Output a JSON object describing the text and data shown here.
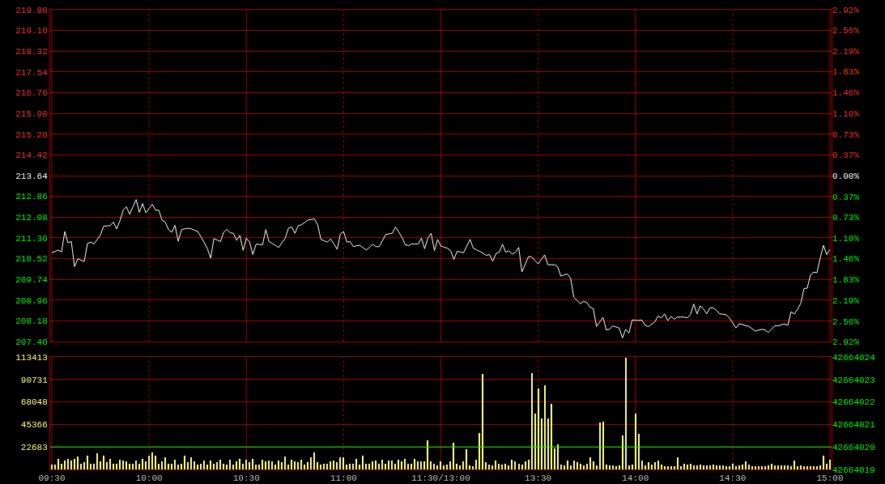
{
  "chart_data": [
    {
      "type": "line",
      "tick_labels": "y",
      "grid": true,
      "categories": [
        null,
        null,
        null,
        null,
        null,
        null,
        null,
        null,
        null,
        null,
        null,
        null,
        null,
        null,
        null,
        null,
        null,
        null,
        null,
        null,
        null,
        null,
        null,
        null,
        null,
        null,
        null,
        null,
        null,
        null,
        null,
        null,
        null,
        null,
        null,
        null,
        null,
        null,
        null,
        null,
        null,
        null,
        null,
        null,
        null,
        null,
        null,
        null,
        null,
        null,
        null,
        null,
        null,
        null,
        null,
        null,
        null,
        null,
        null,
        null,
        null,
        null,
        null,
        null,
        null,
        null,
        null,
        null,
        null,
        null,
        null,
        null,
        null,
        null,
        null,
        null,
        null,
        null,
        null,
        null,
        null,
        null,
        null,
        null,
        null,
        null,
        null,
        null,
        null,
        null,
        null,
        null,
        null,
        null,
        null,
        null,
        null,
        null,
        null,
        null,
        null,
        null,
        null,
        null,
        null,
        null,
        null,
        null,
        null,
        null,
        null,
        null,
        null,
        null,
        null,
        null,
        null,
        null,
        null,
        null,
        null,
        null,
        null,
        null,
        null,
        null,
        null,
        null,
        null,
        null,
        null,
        null,
        null,
        null,
        null,
        null,
        null,
        null,
        null,
        null,
        null,
        null,
        null,
        null,
        null,
        null,
        null,
        null,
        null,
        null,
        null,
        null,
        null,
        null,
        null,
        null,
        null,
        null,
        null,
        null,
        null,
        null,
        null,
        null,
        null,
        null,
        null,
        null,
        null,
        null,
        null,
        null,
        null,
        null,
        null,
        null,
        null,
        null,
        null,
        null,
        null,
        null,
        null,
        null,
        null,
        null,
        null,
        null,
        null,
        null,
        null,
        null,
        null,
        null,
        null,
        null,
        null,
        null,
        null,
        null,
        null,
        null,
        null,
        null,
        null,
        null,
        null,
        null,
        null,
        null,
        null,
        null,
        null,
        null,
        null,
        null,
        null,
        null,
        null,
        null,
        null,
        null,
        null,
        null,
        null,
        null,
        null,
        null,
        null,
        null,
        null,
        null,
        null,
        null,
        null,
        null,
        null,
        null,
        null,
        null,
        null
      ],
      "ylim": [
        207.4,
        219.88
      ],
      "yticks": [
        {
          "value": 207.4,
          "label": "207.40"
        },
        {
          "value": 208.18,
          "label": "208.18"
        },
        {
          "value": 208.96,
          "label": "208.96"
        },
        {
          "value": 209.74,
          "label": "209.74"
        },
        {
          "value": 210.52,
          "label": "210.52"
        },
        {
          "value": 211.3,
          "label": "211.30"
        },
        {
          "value": 212.08,
          "label": "212.08"
        },
        {
          "value": 212.86,
          "label": "212.86"
        },
        {
          "value": 213.64,
          "label": "213.64"
        },
        {
          "value": 214.42,
          "label": "214.42"
        },
        {
          "value": 215.2,
          "label": "215.20"
        },
        {
          "value": 215.98,
          "label": "215.98"
        },
        {
          "value": 216.76,
          "label": "216.76"
        },
        {
          "value": 217.54,
          "label": "217.54"
        },
        {
          "value": 218.32,
          "label": "218.32"
        },
        {
          "value": 219.1,
          "label": "219.10"
        },
        {
          "value": 219.88,
          "label": "219.88"
        }
      ],
      "y2lim": [
        -2.92,
        2.92
      ],
      "y2ticks": [
        {
          "value": -2.92,
          "label": "2.92%"
        },
        {
          "value": -2.56,
          "label": "2.56%"
        },
        {
          "value": -2.19,
          "label": "2.19%"
        },
        {
          "value": -1.83,
          "label": "1.83%"
        },
        {
          "value": -1.46,
          "label": "1.46%"
        },
        {
          "value": -1.1,
          "label": "1.10%"
        },
        {
          "value": -0.73,
          "label": "0.73%"
        },
        {
          "value": -0.37,
          "label": "0.37%"
        },
        {
          "value": 0,
          "label": "0.00%"
        },
        {
          "value": 0.37,
          "label": "0.37%"
        },
        {
          "value": 0.73,
          "label": "0.73%"
        },
        {
          "value": 1.1,
          "label": "1.10%"
        },
        {
          "value": 1.46,
          "label": "1.46%"
        },
        {
          "value": 1.83,
          "label": "1.83%"
        },
        {
          "value": 2.19,
          "label": "2.19%"
        },
        {
          "value": 2.56,
          "label": "2.56%"
        },
        {
          "value": 2.92,
          "label": "2.92%"
        }
      ],
      "series": [
        {
          "color": "#ffffff",
          "values": [
            210.74,
            210.79,
            210.84,
            210.77,
            211.54,
            211.11,
            211.17,
            210.22,
            210.51,
            210.46,
            210.41,
            211.09,
            211.14,
            211.07,
            211.24,
            211.41,
            211.74,
            211.75,
            211.76,
            211.89,
            211.64,
            211.94,
            212.34,
            212.47,
            212.19,
            212.46,
            212.74,
            212.26,
            212.59,
            212.24,
            212.41,
            212.56,
            212.34,
            212.34,
            211.97,
            211.89,
            211.61,
            211.51,
            211.77,
            211.17,
            211.61,
            211.64,
            211.66,
            211.64,
            211.59,
            211.54,
            211.34,
            211.12,
            210.89,
            210.54,
            211.27,
            211.22,
            211.16,
            211.51,
            211.62,
            211.49,
            211.47,
            211.21,
            211.39,
            210.83,
            211.29,
            211.14,
            210.67,
            211.06,
            211.05,
            211.04,
            211.61,
            211.16,
            211.09,
            211.01,
            210.94,
            211.12,
            211.29,
            211.67,
            211.71,
            211.47,
            211.76,
            211.79,
            211.88,
            211.97,
            211.99,
            212.01,
            211.79,
            211.24,
            211.19,
            211.14,
            211.26,
            211.07,
            210.87,
            211.44,
            211.54,
            211.14,
            211.16,
            210.97,
            211.0,
            211.02,
            210.93,
            210.84,
            210.95,
            211.06,
            210.97,
            210.97,
            211.2,
            211.43,
            211.45,
            211.47,
            211.71,
            211.52,
            211.32,
            211.04,
            211.01,
            211.07,
            211.07,
            211.07,
            211.29,
            210.89,
            211.29,
            211.47,
            210.82,
            211.24,
            210.99,
            210.95,
            210.91,
            210.82,
            210.49,
            210.79,
            210.77,
            210.74,
            210.99,
            211.24,
            210.91,
            210.85,
            210.79,
            210.72,
            210.64,
            210.67,
            210.42,
            210.71,
            210.76,
            211.06,
            210.76,
            210.81,
            210.69,
            210.76,
            210.94,
            210.02,
            210.3,
            210.59,
            210.59,
            210.45,
            210.32,
            210.49,
            210.66,
            210.29,
            210.29,
            210.29,
            210.22,
            209.86,
            209.91,
            209.94,
            209.79,
            209.07,
            208.95,
            208.82,
            208.91,
            208.87,
            208.69,
            208.64,
            207.97,
            208.14,
            208.31,
            207.84,
            207.86,
            207.99,
            207.95,
            207.91,
            207.54,
            207.86,
            207.72,
            208.21,
            208.2,
            208.19,
            208.21,
            208.01,
            207.96,
            208.05,
            208.14,
            208.36,
            208.29,
            208.44,
            208.19,
            208.34,
            208.24,
            208.32,
            208.32,
            208.32,
            208.29,
            208.42,
            208.81,
            208.44,
            208.74,
            208.62,
            208.44,
            208.67,
            208.67,
            208.57,
            208.44,
            208.43,
            208.41,
            208.29,
            208.1,
            207.91,
            208.07,
            208.04,
            208.0,
            207.97,
            207.88,
            207.79,
            207.83,
            207.86,
            207.84,
            207.74,
            207.87,
            207.99,
            207.99,
            208.03,
            208.06,
            208.01,
            208.52,
            208.44,
            208.61,
            208.84,
            209.39,
            209.41,
            209.91,
            210.01,
            209.99,
            210.54,
            211.02,
            210.67,
            210.86
          ]
        }
      ]
    },
    {
      "type": "bar",
      "grid": true,
      "color": "#ffff80",
      "categories": [
        "09:30",
        null,
        null,
        null,
        null,
        null,
        null,
        null,
        null,
        null,
        null,
        null,
        null,
        null,
        null,
        null,
        null,
        null,
        null,
        null,
        null,
        null,
        null,
        null,
        null,
        null,
        null,
        null,
        null,
        null,
        "10:00",
        null,
        null,
        null,
        null,
        null,
        null,
        null,
        null,
        null,
        null,
        null,
        null,
        null,
        null,
        null,
        null,
        null,
        null,
        null,
        null,
        null,
        null,
        null,
        null,
        null,
        null,
        null,
        null,
        null,
        "10:30",
        null,
        null,
        null,
        null,
        null,
        null,
        null,
        null,
        null,
        null,
        null,
        null,
        null,
        null,
        null,
        null,
        null,
        null,
        null,
        null,
        null,
        null,
        null,
        null,
        null,
        null,
        null,
        null,
        null,
        "11:00",
        null,
        null,
        null,
        null,
        null,
        null,
        null,
        null,
        null,
        null,
        null,
        null,
        null,
        null,
        null,
        null,
        null,
        null,
        null,
        null,
        null,
        null,
        null,
        null,
        null,
        null,
        null,
        null,
        null,
        "11:30/13:00",
        null,
        null,
        null,
        null,
        null,
        null,
        null,
        null,
        null,
        null,
        null,
        null,
        null,
        null,
        null,
        null,
        null,
        null,
        null,
        null,
        null,
        null,
        null,
        null,
        null,
        null,
        null,
        null,
        null,
        "13:30",
        null,
        null,
        null,
        null,
        null,
        null,
        null,
        null,
        null,
        null,
        null,
        null,
        null,
        null,
        null,
        null,
        null,
        null,
        null,
        null,
        null,
        null,
        null,
        null,
        null,
        null,
        null,
        null,
        null,
        "14:00",
        null,
        null,
        null,
        null,
        null,
        null,
        null,
        null,
        null,
        null,
        null,
        null,
        null,
        null,
        null,
        null,
        null,
        null,
        null,
        null,
        null,
        null,
        null,
        null,
        null,
        null,
        null,
        null,
        null,
        "14:30",
        null,
        null,
        null,
        null,
        null,
        null,
        null,
        null,
        null,
        null,
        null,
        null,
        null,
        null,
        null,
        null,
        null,
        null,
        null,
        null,
        null,
        null,
        null,
        null,
        null,
        null,
        null,
        null,
        null,
        "15:00"
      ],
      "ylim": [
        0,
        113413
      ],
      "yticks": [
        {
          "value": 0,
          "label": null
        },
        22683,
        45366,
        68048,
        90731,
        113413
      ],
      "y2lim": [
        42664019,
        42664024
      ],
      "y2ticks": [
        42664019,
        42664020,
        42664021,
        42664022,
        42664023,
        42664024
      ],
      "ref_lines": [
        {
          "axis": "y",
          "value": 22683,
          "color": "#00ff00"
        }
      ],
      "values": [
        5000,
        5000,
        11000,
        6000,
        9000,
        11000,
        9000,
        11000,
        13000,
        6000,
        7000,
        14000,
        6000,
        6000,
        16000,
        8000,
        14000,
        7000,
        11000,
        6000,
        6000,
        10000,
        9000,
        8000,
        6000,
        6000,
        9000,
        6000,
        11000,
        8000,
        14000,
        17000,
        14000,
        6000,
        8000,
        12000,
        6000,
        6000,
        10000,
        5000,
        6000,
        14000,
        7000,
        12000,
        8000,
        5000,
        6000,
        9000,
        5000,
        9000,
        6000,
        7000,
        10000,
        6000,
        5000,
        10000,
        5000,
        8000,
        11000,
        6000,
        10000,
        7000,
        11000,
        5000,
        5000,
        10000,
        8000,
        9000,
        8000,
        5000,
        9000,
        7000,
        13000,
        5000,
        10000,
        8000,
        7000,
        10000,
        5000,
        7000,
        12000,
        17000,
        7000,
        5000,
        6000,
        6000,
        8000,
        9000,
        7000,
        12000,
        12000,
        5000,
        6000,
        6000,
        11000,
        5000,
        14000,
        6000,
        6000,
        8000,
        9000,
        6000,
        10000,
        6000,
        9000,
        9000,
        6000,
        10000,
        8000,
        11000,
        6000,
        6000,
        11000,
        8000,
        8000,
        8000,
        29000,
        8000,
        6000,
        4000,
        8000,
        4000,
        5000,
        8000,
        27000,
        6000,
        4000,
        8000,
        20000,
        4000,
        3000,
        10000,
        37000,
        96000,
        7000,
        5000,
        4000,
        9000,
        6000,
        5000,
        6000,
        4000,
        10000,
        8000,
        6000,
        5000,
        8000,
        10000,
        97000,
        56000,
        82000,
        51000,
        85000,
        51000,
        66000,
        21000,
        25000,
        5000,
        4000,
        9000,
        4000,
        9000,
        7000,
        6000,
        4000,
        6000,
        12000,
        8000,
        4000,
        47000,
        48000,
        5000,
        4000,
        4000,
        3000,
        4000,
        34000,
        113000,
        4000,
        5000,
        56000,
        36000,
        9000,
        4000,
        7000,
        5000,
        7000,
        9000,
        5000,
        3000,
        3000,
        3000,
        3000,
        12000,
        3000,
        6000,
        5000,
        6000,
        4000,
        4000,
        5000,
        4000,
        4000,
        4000,
        5000,
        4000,
        4000,
        4000,
        3000,
        3000,
        6000,
        3000,
        4000,
        5000,
        8000,
        5000,
        3000,
        3000,
        3000,
        3000,
        3000,
        4000,
        6000,
        4000,
        4000,
        4000,
        4000,
        4000,
        3000,
        9000,
        3000,
        4000,
        3000,
        3000,
        3000,
        3000,
        3000,
        4000,
        14000,
        6000,
        10000
      ]
    }
  ]
}
